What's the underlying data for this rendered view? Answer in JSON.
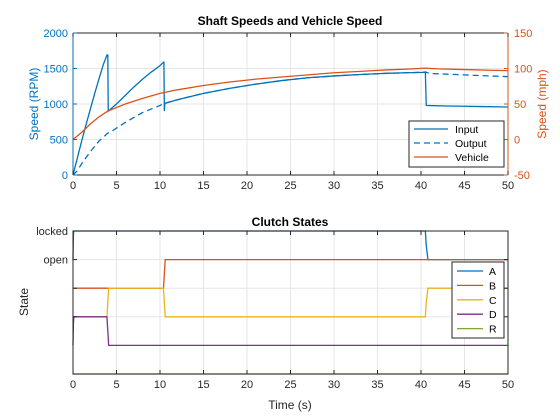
{
  "colors": {
    "blue": "#0072BD",
    "orange": "#D95319",
    "yellow": "#EDB120",
    "purple": "#7E2F8E",
    "green": "#77AC30",
    "axis": "#262626",
    "grid": "#e6e6e6"
  },
  "chart_data": [
    {
      "type": "line",
      "title": "Shaft Speeds and Vehicle Speed",
      "xlabel": "",
      "ylabel": "Speed (RPM)",
      "y2label": "Speed (mph)",
      "xlim": [
        0,
        50
      ],
      "ylim": [
        0,
        2000
      ],
      "y2lim": [
        -50,
        150
      ],
      "xticks": [
        0,
        5,
        10,
        15,
        20,
        25,
        30,
        35,
        40,
        45,
        50
      ],
      "yticks": [
        0,
        500,
        1000,
        1500,
        2000
      ],
      "y2ticks": [
        -50,
        0,
        50,
        100,
        150
      ],
      "grid": true,
      "legend_position": "bottom-right",
      "series": [
        {
          "name": "Input",
          "axis": "left",
          "style": "solid",
          "color": "#0072BD",
          "x": [
            0,
            0.5,
            1,
            1.5,
            2,
            2.5,
            3,
            3.5,
            3.9,
            4.0,
            4.05,
            5,
            6,
            7,
            8,
            9,
            10,
            10.4,
            10.45,
            10.5,
            10.55,
            10.6,
            12,
            15,
            18,
            21,
            24,
            27,
            30,
            33,
            36,
            39,
            40.4,
            40.5,
            40.6,
            41,
            43,
            45,
            47,
            50
          ],
          "y": [
            0,
            240,
            480,
            710,
            930,
            1150,
            1360,
            1560,
            1690,
            1690,
            900,
            1000,
            1120,
            1240,
            1350,
            1450,
            1540,
            1590,
            1590,
            900,
            1000,
            1010,
            1060,
            1150,
            1220,
            1280,
            1330,
            1370,
            1395,
            1415,
            1432,
            1442,
            1445,
            1450,
            980,
            978,
            972,
            968,
            964,
            958
          ]
        },
        {
          "name": "Output",
          "axis": "left",
          "style": "dashed",
          "color": "#0072BD",
          "x": [
            0,
            0.5,
            1,
            2,
            3,
            4,
            4.5,
            6,
            8,
            10,
            10.5,
            12,
            15,
            18,
            21,
            24,
            27,
            30,
            33,
            36,
            39,
            40.5,
            41,
            43,
            45,
            47,
            50
          ],
          "y": [
            0,
            60,
            160,
            330,
            480,
            590,
            620,
            740,
            880,
            980,
            1010,
            1060,
            1150,
            1220,
            1280,
            1330,
            1370,
            1395,
            1415,
            1432,
            1442,
            1450,
            1430,
            1420,
            1410,
            1400,
            1385
          ]
        },
        {
          "name": "Vehicle",
          "axis": "right",
          "style": "solid",
          "color": "#D95319",
          "x": [
            0,
            1,
            2,
            3,
            4,
            5,
            6,
            8,
            10,
            12,
            15,
            18,
            21,
            24,
            27,
            30,
            33,
            36,
            39,
            40.5,
            42,
            45,
            48,
            50
          ],
          "y": [
            0,
            10,
            22,
            32,
            40,
            45,
            50,
            58,
            65,
            70,
            76,
            81,
            85,
            88,
            91,
            94,
            96,
            98,
            99.5,
            100.5,
            99.5,
            98.5,
            97.5,
            97
          ]
        }
      ]
    },
    {
      "type": "line",
      "title": "Clutch States",
      "xlabel": "Time (s)",
      "ylabel": "State",
      "xlim": [
        0,
        50
      ],
      "ylim": [
        -2,
        3
      ],
      "xticks": [
        0,
        5,
        10,
        15,
        20,
        25,
        30,
        35,
        40,
        45,
        50
      ],
      "yticks": [
        0,
        1,
        2,
        3
      ],
      "yticklabels": [
        "",
        "",
        "open",
        "locked"
      ],
      "grid": true,
      "legend_position": "right",
      "series": [
        {
          "name": "A",
          "color": "#0072BD",
          "x": [
            0,
            0.05,
            0.1,
            40.5,
            40.6,
            40.8,
            50
          ],
          "y": [
            2,
            2.9,
            3,
            3,
            2.5,
            2,
            2
          ]
        },
        {
          "name": "B",
          "color": "#D95319",
          "x": [
            0,
            10.4,
            10.5,
            10.6,
            50
          ],
          "y": [
            1,
            1,
            1.5,
            2,
            2
          ]
        },
        {
          "name": "C",
          "color": "#EDB120",
          "x": [
            0,
            3.9,
            4.0,
            4.1,
            10.4,
            10.5,
            10.6,
            40.5,
            40.6,
            40.8,
            50
          ],
          "y": [
            0,
            0,
            0.5,
            1,
            1,
            0.5,
            0,
            0,
            0.5,
            1,
            1
          ]
        },
        {
          "name": "D",
          "color": "#7E2F8E",
          "x": [
            0,
            0.05,
            0.1,
            3.9,
            4.0,
            4.1,
            50
          ],
          "y": [
            -1,
            -0.2,
            0,
            0,
            -0.5,
            -1,
            -1
          ]
        },
        {
          "name": "R",
          "color": "#77AC30",
          "x": [
            0,
            50
          ],
          "y": [
            -2,
            -2
          ]
        }
      ]
    }
  ]
}
